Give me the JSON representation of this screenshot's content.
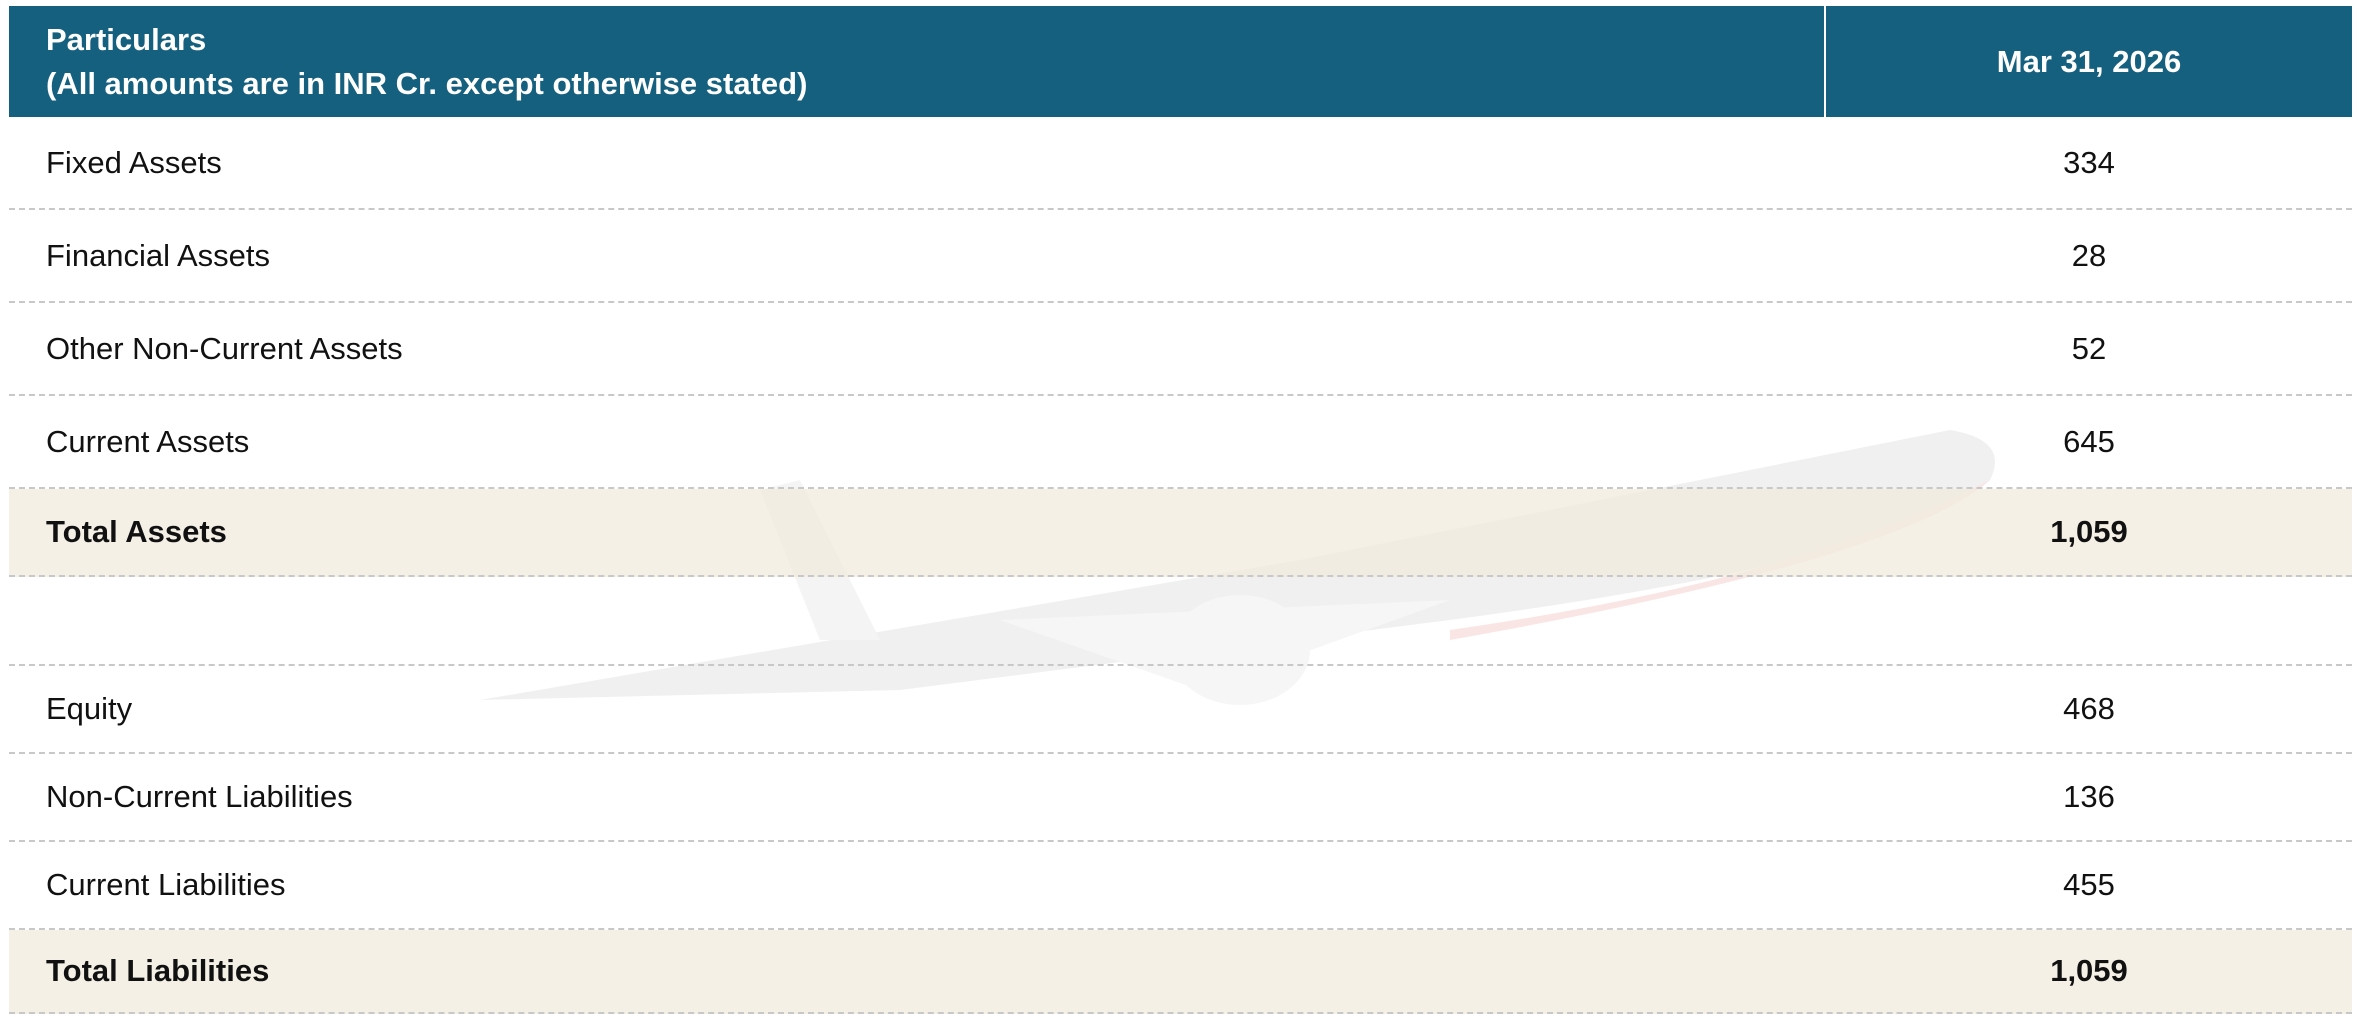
{
  "table": {
    "header": {
      "particulars": "Particulars",
      "note": "(All amounts are in INR Cr. except otherwise stated)",
      "period": "Mar 31, 2026"
    },
    "sections": [
      {
        "rows": [
          [
            "Fixed Assets",
            "334"
          ],
          [
            "Financial Assets",
            "28"
          ],
          [
            "Other Non-Current Assets",
            "52"
          ],
          [
            "Current Assets",
            "645"
          ]
        ],
        "total": [
          "Total Assets",
          "1,059"
        ]
      },
      {
        "rows": [
          [
            "Equity",
            "468"
          ],
          [
            "Non-Current Liabilities",
            "136"
          ],
          [
            "Current Liabilities",
            "455"
          ]
        ],
        "total": [
          "Total Liabilities",
          "1,059"
        ]
      }
    ]
  }
}
